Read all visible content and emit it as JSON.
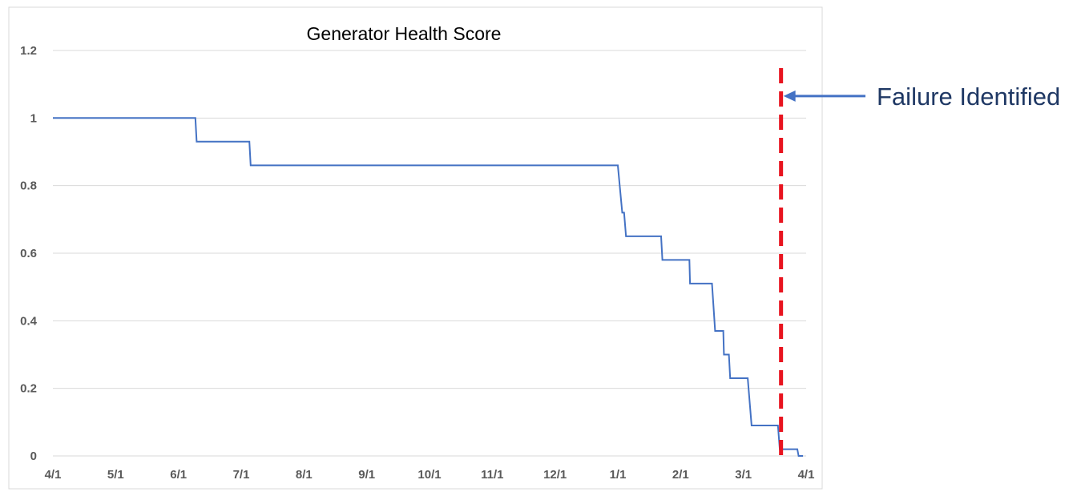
{
  "chart_data": {
    "type": "line",
    "title": "Generator Health Score",
    "xlabel": "",
    "ylabel": "",
    "x_tick_labels": [
      "4/1",
      "5/1",
      "6/1",
      "7/1",
      "8/1",
      "9/1",
      "10/1",
      "11/1",
      "12/1",
      "1/1",
      "2/1",
      "3/1",
      "4/1"
    ],
    "y_tick_labels": [
      "0",
      "0.2",
      "0.4",
      "0.6",
      "0.8",
      "1",
      "1.2"
    ],
    "ylim": [
      0,
      1.2
    ],
    "xlim_months": [
      0,
      12
    ],
    "grid": true,
    "legend": "none",
    "series": [
      {
        "color": "#4472c4",
        "points": [
          {
            "x": 0.0,
            "y": 1.0
          },
          {
            "x": 2.27,
            "y": 1.0
          },
          {
            "x": 2.29,
            "y": 0.93
          },
          {
            "x": 3.13,
            "y": 0.93
          },
          {
            "x": 3.15,
            "y": 0.86
          },
          {
            "x": 9.0,
            "y": 0.86
          },
          {
            "x": 9.07,
            "y": 0.72
          },
          {
            "x": 9.1,
            "y": 0.72
          },
          {
            "x": 9.13,
            "y": 0.65
          },
          {
            "x": 9.69,
            "y": 0.65
          },
          {
            "x": 9.71,
            "y": 0.58
          },
          {
            "x": 10.14,
            "y": 0.58
          },
          {
            "x": 10.15,
            "y": 0.51
          },
          {
            "x": 10.5,
            "y": 0.51
          },
          {
            "x": 10.55,
            "y": 0.37
          },
          {
            "x": 10.68,
            "y": 0.37
          },
          {
            "x": 10.69,
            "y": 0.3
          },
          {
            "x": 10.77,
            "y": 0.3
          },
          {
            "x": 10.79,
            "y": 0.23
          },
          {
            "x": 11.07,
            "y": 0.23
          },
          {
            "x": 11.13,
            "y": 0.09
          },
          {
            "x": 11.55,
            "y": 0.09
          },
          {
            "x": 11.58,
            "y": 0.02
          },
          {
            "x": 11.86,
            "y": 0.02
          },
          {
            "x": 11.88,
            "y": 0.0
          },
          {
            "x": 11.95,
            "y": 0.0
          }
        ]
      }
    ],
    "annotations": [
      {
        "type": "vertical-line",
        "x": 11.6,
        "color": "#e8141f",
        "style": "dashed"
      },
      {
        "type": "arrow-label",
        "text": "Failure Identified",
        "color": "#1f3864",
        "arrow_color": "#4472c4",
        "points_to_x": 11.6,
        "y": 1.07
      }
    ]
  }
}
